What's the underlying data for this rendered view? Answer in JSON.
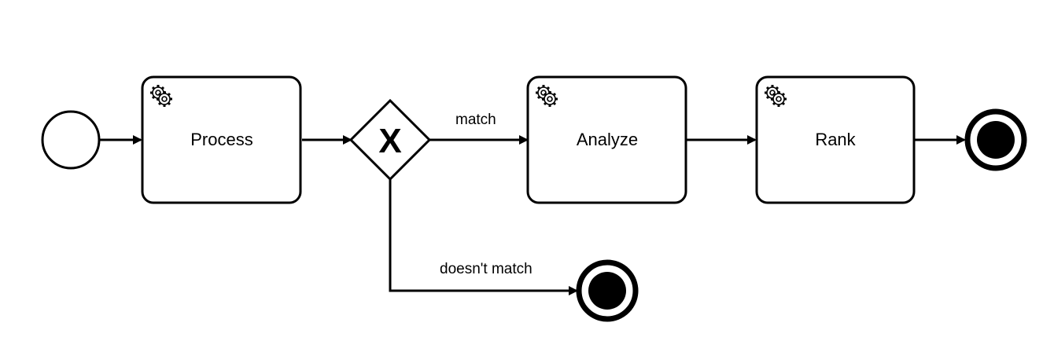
{
  "diagram": {
    "type": "bpmn-process",
    "start_event": {
      "kind": "start-event"
    },
    "tasks": [
      {
        "id": "process",
        "label": "Process",
        "kind": "service-task",
        "icon": "gear-icon"
      },
      {
        "id": "analyze",
        "label": "Analyze",
        "kind": "service-task",
        "icon": "gear-icon"
      },
      {
        "id": "rank",
        "label": "Rank",
        "kind": "service-task",
        "icon": "gear-icon"
      }
    ],
    "gateway": {
      "kind": "exclusive-gateway",
      "marker": "X"
    },
    "end_events": [
      {
        "id": "end-main",
        "kind": "end-event"
      },
      {
        "id": "end-nomatch",
        "kind": "end-event"
      }
    ],
    "flows": [
      {
        "from": "start",
        "to": "process",
        "label": ""
      },
      {
        "from": "process",
        "to": "gateway",
        "label": ""
      },
      {
        "from": "gateway",
        "to": "analyze",
        "label": "match"
      },
      {
        "from": "analyze",
        "to": "rank",
        "label": ""
      },
      {
        "from": "rank",
        "to": "end-main",
        "label": ""
      },
      {
        "from": "gateway",
        "to": "end-nomatch",
        "label": "doesn't match"
      }
    ],
    "colors": {
      "stroke": "#000000",
      "fill": "#ffffff",
      "end_fill": "#000000"
    }
  }
}
